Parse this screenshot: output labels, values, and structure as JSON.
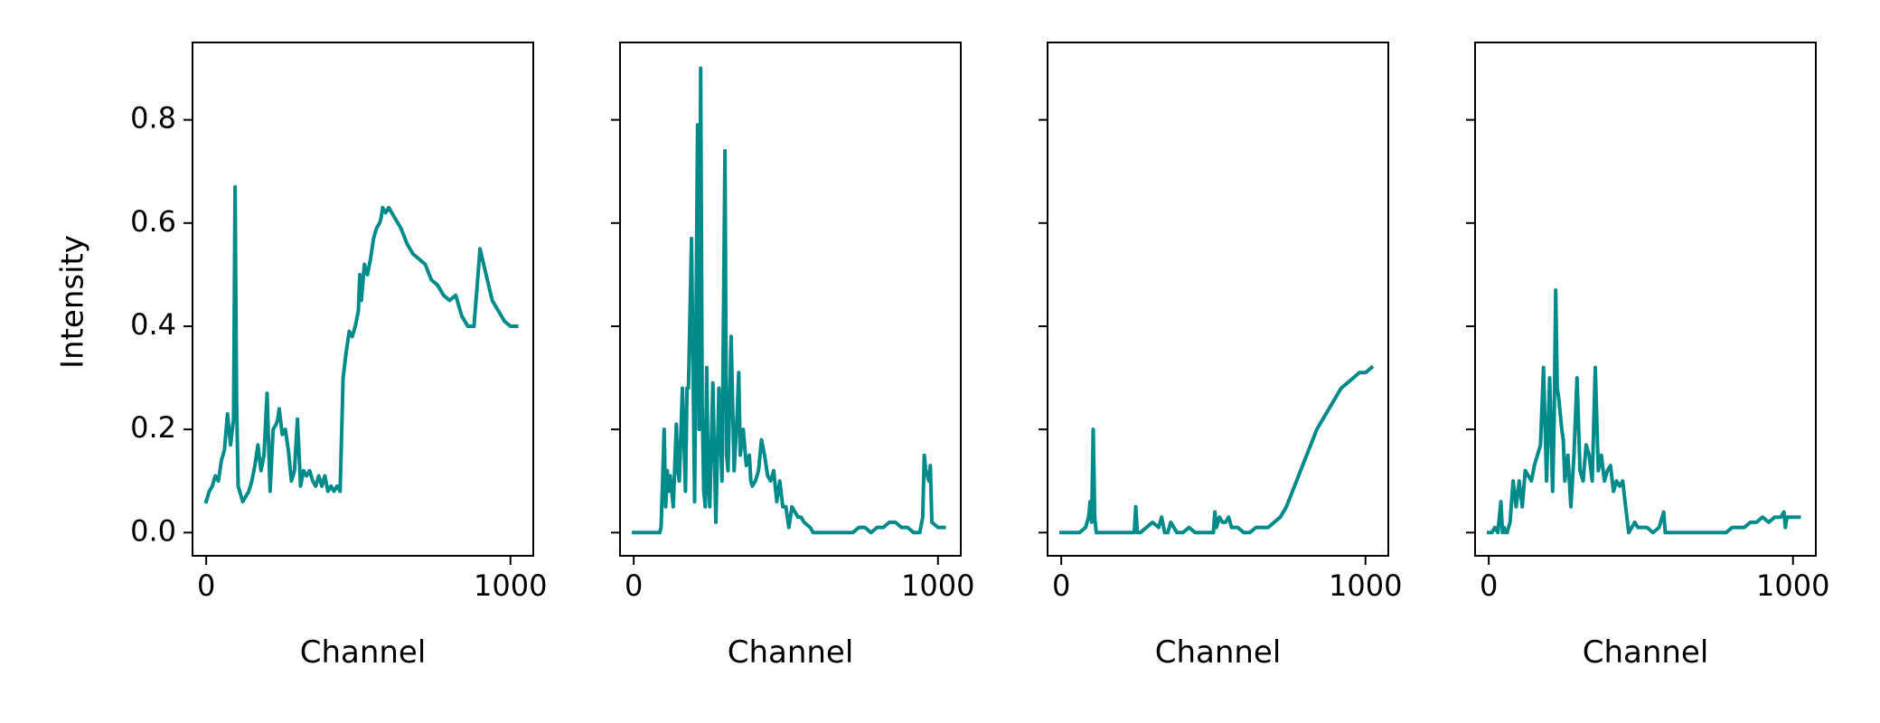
{
  "figure": {
    "line_color": "#008b8b",
    "shared_y": true,
    "ylabel": "Intensity"
  },
  "chart_data": [
    {
      "type": "line",
      "xlabel": "Channel",
      "ylabel": "Intensity",
      "xlim": [
        -45,
        1075
      ],
      "ylim": [
        -0.045,
        0.95
      ],
      "xticks": [
        0,
        1000
      ],
      "yticks": [
        0.0,
        0.2,
        0.4,
        0.6,
        0.8
      ],
      "ytick_labels": [
        "0.0",
        "0.2",
        "0.4",
        "0.6",
        "0.8"
      ],
      "grid": false,
      "series": [
        {
          "color": "#008b8b",
          "x": [
            0,
            10,
            20,
            30,
            40,
            50,
            60,
            70,
            80,
            90,
            95,
            100,
            105,
            110,
            120,
            130,
            140,
            150,
            160,
            170,
            180,
            190,
            200,
            210,
            220,
            230,
            235,
            240,
            250,
            260,
            270,
            280,
            290,
            300,
            310,
            320,
            330,
            340,
            350,
            360,
            370,
            380,
            390,
            400,
            410,
            420,
            430,
            440,
            450,
            460,
            470,
            480,
            490,
            500,
            505,
            510,
            520,
            530,
            540,
            550,
            560,
            570,
            575,
            580,
            590,
            600,
            620,
            640,
            660,
            680,
            700,
            720,
            740,
            760,
            780,
            800,
            820,
            840,
            860,
            880,
            900,
            920,
            940,
            950,
            960,
            980,
            1000,
            1020
          ],
          "y": [
            0.06,
            0.08,
            0.09,
            0.11,
            0.1,
            0.14,
            0.16,
            0.23,
            0.17,
            0.22,
            0.67,
            0.25,
            0.09,
            0.08,
            0.06,
            0.07,
            0.08,
            0.1,
            0.13,
            0.17,
            0.12,
            0.15,
            0.27,
            0.08,
            0.2,
            0.21,
            0.22,
            0.24,
            0.19,
            0.2,
            0.16,
            0.1,
            0.12,
            0.22,
            0.09,
            0.12,
            0.11,
            0.12,
            0.1,
            0.09,
            0.11,
            0.09,
            0.11,
            0.08,
            0.09,
            0.08,
            0.09,
            0.08,
            0.3,
            0.35,
            0.39,
            0.38,
            0.4,
            0.43,
            0.5,
            0.45,
            0.52,
            0.5,
            0.53,
            0.57,
            0.59,
            0.6,
            0.61,
            0.63,
            0.62,
            0.63,
            0.61,
            0.59,
            0.56,
            0.54,
            0.53,
            0.52,
            0.49,
            0.48,
            0.46,
            0.45,
            0.46,
            0.42,
            0.4,
            0.4,
            0.55,
            0.5,
            0.45,
            0.44,
            0.43,
            0.41,
            0.4,
            0.4
          ]
        }
      ]
    },
    {
      "type": "line",
      "xlabel": "Channel",
      "ylabel": "",
      "xlim": [
        -45,
        1075
      ],
      "ylim": [
        -0.045,
        0.95
      ],
      "xticks": [
        0,
        1000
      ],
      "yticks": [
        0.0,
        0.2,
        0.4,
        0.6,
        0.8
      ],
      "ytick_labels": [
        "",
        "",
        "",
        "",
        ""
      ],
      "grid": false,
      "series": [
        {
          "color": "#008b8b",
          "x": [
            0,
            20,
            40,
            60,
            80,
            85,
            90,
            95,
            100,
            105,
            110,
            115,
            120,
            130,
            140,
            145,
            150,
            160,
            170,
            175,
            180,
            190,
            200,
            210,
            215,
            220,
            225,
            230,
            235,
            240,
            245,
            250,
            260,
            270,
            280,
            290,
            300,
            305,
            310,
            320,
            330,
            340,
            345,
            350,
            360,
            370,
            380,
            385,
            390,
            400,
            410,
            420,
            430,
            440,
            450,
            460,
            470,
            480,
            490,
            500,
            510,
            520,
            530,
            540,
            550,
            560,
            580,
            590,
            600,
            620,
            640,
            660,
            680,
            700,
            720,
            740,
            760,
            780,
            800,
            820,
            840,
            860,
            880,
            900,
            920,
            940,
            950,
            955,
            960,
            970,
            975,
            980,
            1000,
            1020
          ],
          "y": [
            0.0,
            0.0,
            0.0,
            0.0,
            0.0,
            0.0,
            0.01,
            0.1,
            0.2,
            0.05,
            0.12,
            0.08,
            0.11,
            0.05,
            0.21,
            0.12,
            0.1,
            0.28,
            0.08,
            0.28,
            0.28,
            0.57,
            0.06,
            0.79,
            0.2,
            0.9,
            0.25,
            0.08,
            0.05,
            0.32,
            0.1,
            0.05,
            0.29,
            0.02,
            0.28,
            0.1,
            0.74,
            0.15,
            0.12,
            0.38,
            0.12,
            0.23,
            0.31,
            0.15,
            0.2,
            0.13,
            0.15,
            0.1,
            0.09,
            0.1,
            0.12,
            0.18,
            0.15,
            0.11,
            0.1,
            0.12,
            0.06,
            0.1,
            0.05,
            0.05,
            0.01,
            0.05,
            0.04,
            0.03,
            0.03,
            0.02,
            0.01,
            0.0,
            0.0,
            0.0,
            0.0,
            0.0,
            0.0,
            0.0,
            0.0,
            0.01,
            0.01,
            0.0,
            0.01,
            0.01,
            0.02,
            0.02,
            0.01,
            0.01,
            0.0,
            0.0,
            0.03,
            0.15,
            0.12,
            0.1,
            0.13,
            0.02,
            0.01,
            0.01
          ]
        }
      ]
    },
    {
      "type": "line",
      "xlabel": "Channel",
      "ylabel": "",
      "xlim": [
        -45,
        1075
      ],
      "ylim": [
        -0.045,
        0.95
      ],
      "xticks": [
        0,
        1000
      ],
      "yticks": [
        0.0,
        0.2,
        0.4,
        0.6,
        0.8
      ],
      "ytick_labels": [
        "",
        "",
        "",
        "",
        ""
      ],
      "grid": false,
      "series": [
        {
          "color": "#008b8b",
          "x": [
            0,
            20,
            40,
            60,
            80,
            90,
            95,
            100,
            105,
            110,
            115,
            120,
            140,
            160,
            180,
            200,
            220,
            240,
            245,
            250,
            260,
            280,
            300,
            320,
            330,
            340,
            350,
            360,
            380,
            400,
            420,
            440,
            460,
            480,
            500,
            505,
            510,
            520,
            530,
            540,
            550,
            560,
            580,
            600,
            620,
            640,
            660,
            680,
            700,
            720,
            740,
            760,
            780,
            800,
            820,
            840,
            860,
            880,
            900,
            920,
            940,
            960,
            980,
            1000,
            1020
          ],
          "y": [
            0.0,
            0.0,
            0.0,
            0.0,
            0.01,
            0.03,
            0.06,
            0.02,
            0.2,
            0.03,
            0.0,
            0.0,
            0.0,
            0.0,
            0.0,
            0.0,
            0.0,
            0.0,
            0.05,
            0.0,
            0.0,
            0.01,
            0.02,
            0.01,
            0.03,
            0.0,
            0.0,
            0.02,
            0.0,
            0.0,
            0.01,
            0.0,
            0.0,
            0.0,
            0.0,
            0.04,
            0.01,
            0.03,
            0.02,
            0.02,
            0.03,
            0.01,
            0.01,
            0.0,
            0.0,
            0.01,
            0.01,
            0.01,
            0.02,
            0.03,
            0.05,
            0.08,
            0.11,
            0.14,
            0.17,
            0.2,
            0.22,
            0.24,
            0.26,
            0.28,
            0.29,
            0.3,
            0.31,
            0.31,
            0.32
          ]
        }
      ]
    },
    {
      "type": "line",
      "xlabel": "Channel",
      "ylabel": "",
      "xlim": [
        -45,
        1075
      ],
      "ylim": [
        -0.045,
        0.95
      ],
      "xticks": [
        0,
        1000
      ],
      "yticks": [
        0.0,
        0.2,
        0.4,
        0.6,
        0.8
      ],
      "ytick_labels": [
        "",
        "",
        "",
        "",
        ""
      ],
      "grid": false,
      "series": [
        {
          "color": "#008b8b",
          "x": [
            0,
            10,
            20,
            30,
            40,
            45,
            50,
            55,
            60,
            70,
            80,
            90,
            100,
            110,
            120,
            130,
            140,
            150,
            160,
            170,
            180,
            190,
            200,
            210,
            215,
            220,
            225,
            230,
            240,
            245,
            250,
            260,
            270,
            280,
            290,
            300,
            310,
            320,
            330,
            340,
            350,
            360,
            370,
            380,
            390,
            400,
            410,
            420,
            430,
            440,
            450,
            460,
            470,
            480,
            490,
            500,
            510,
            520,
            540,
            560,
            575,
            580,
            585,
            600,
            620,
            640,
            660,
            680,
            700,
            720,
            740,
            760,
            780,
            800,
            820,
            840,
            860,
            880,
            900,
            920,
            940,
            960,
            970,
            975,
            980,
            1000,
            1020
          ],
          "y": [
            0.0,
            0.0,
            0.01,
            0.0,
            0.06,
            0.0,
            0.01,
            0.0,
            0.0,
            0.02,
            0.1,
            0.05,
            0.1,
            0.05,
            0.12,
            0.11,
            0.1,
            0.13,
            0.15,
            0.17,
            0.32,
            0.1,
            0.3,
            0.08,
            0.22,
            0.47,
            0.28,
            0.26,
            0.2,
            0.18,
            0.1,
            0.15,
            0.05,
            0.15,
            0.3,
            0.12,
            0.1,
            0.17,
            0.15,
            0.1,
            0.32,
            0.12,
            0.15,
            0.1,
            0.12,
            0.13,
            0.08,
            0.1,
            0.09,
            0.1,
            0.05,
            0.0,
            0.01,
            0.02,
            0.01,
            0.01,
            0.01,
            0.01,
            0.0,
            0.01,
            0.04,
            0.0,
            0.0,
            0.0,
            0.0,
            0.0,
            0.0,
            0.0,
            0.0,
            0.0,
            0.0,
            0.0,
            0.0,
            0.01,
            0.01,
            0.01,
            0.02,
            0.02,
            0.03,
            0.02,
            0.03,
            0.03,
            0.04,
            0.01,
            0.03,
            0.03,
            0.03
          ]
        }
      ]
    }
  ]
}
